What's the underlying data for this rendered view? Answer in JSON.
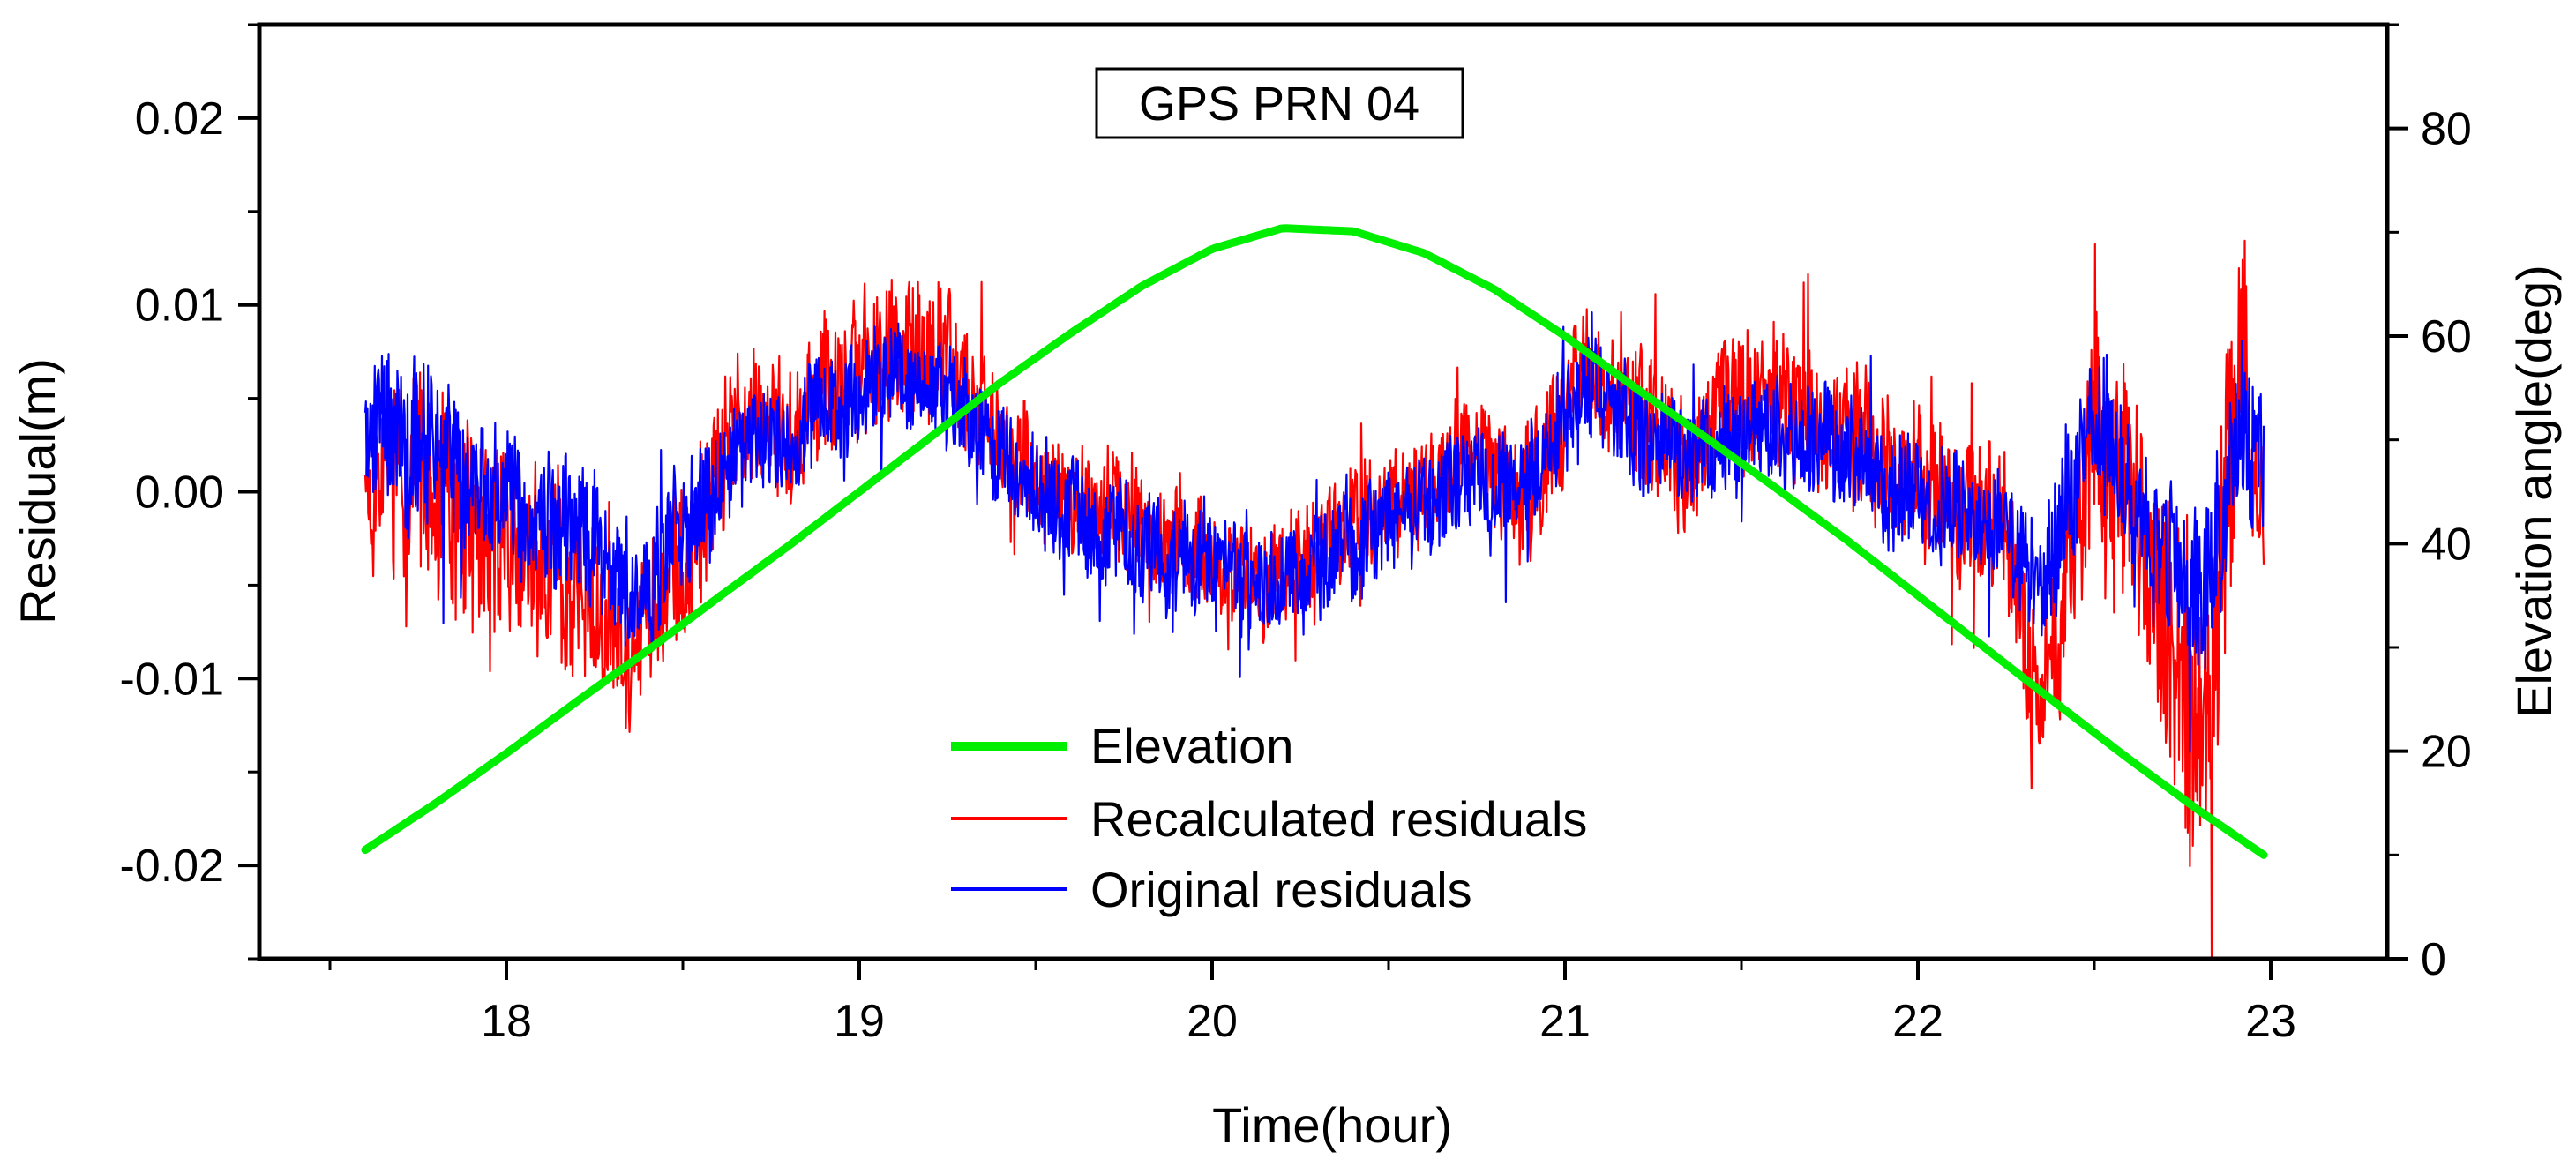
{
  "chart_data": {
    "type": "line",
    "title": "GPS PRN 04",
    "xlabel": "Time(hour)",
    "ylabel": "Residual(m)",
    "y2label": "Elevation angle(deg)",
    "xlim": [
      17.3,
      23.33
    ],
    "ylim": [
      -0.025,
      0.025
    ],
    "y2lim": [
      0,
      90
    ],
    "xticks": [
      18,
      19,
      20,
      21,
      22,
      23
    ],
    "xtick_labels": [
      "18",
      "19",
      "20",
      "21",
      "22",
      "23"
    ],
    "yticks": [
      0.02,
      0.01,
      0.0,
      -0.01,
      -0.02
    ],
    "ytick_labels": [
      "0.02",
      "0.01",
      "0.00",
      "-0.01",
      "-0.02"
    ],
    "y2ticks": [
      0,
      20,
      40,
      60,
      80
    ],
    "y2tick_labels": [
      "0",
      "20",
      "40",
      "60",
      "80"
    ],
    "legend_position": "bottom-center",
    "series": [
      {
        "name": "Elevation",
        "axis": "right",
        "color": "#00ee00",
        "x": [
          17.6,
          17.8,
          18.0,
          18.2,
          18.4,
          18.6,
          18.8,
          19.0,
          19.2,
          19.4,
          19.6,
          19.8,
          20.0,
          20.2,
          20.4,
          20.6,
          20.8,
          21.0,
          21.2,
          21.4,
          21.6,
          21.8,
          22.0,
          22.2,
          22.4,
          22.6,
          22.8,
          22.98
        ],
        "values": [
          10.5,
          15.0,
          19.8,
          24.8,
          29.7,
          34.8,
          39.8,
          45.0,
          50.2,
          55.5,
          60.3,
          64.8,
          68.4,
          70.4,
          70.1,
          68.0,
          64.5,
          60.0,
          55.0,
          50.2,
          45.3,
          40.3,
          35.0,
          29.7,
          24.4,
          19.2,
          14.2,
          10.0
        ]
      },
      {
        "name": "Recalculated residuals",
        "axis": "left",
        "color": "#ff0000",
        "x": [
          17.6,
          17.75,
          17.9,
          18.05,
          18.2,
          18.35,
          18.5,
          18.65,
          18.8,
          18.95,
          19.1,
          19.25,
          19.4,
          19.55,
          19.7,
          19.85,
          20.0,
          20.15,
          20.3,
          20.45,
          20.6,
          20.75,
          20.9,
          21.05,
          21.2,
          21.35,
          21.5,
          21.65,
          21.8,
          21.95,
          22.1,
          22.25,
          22.35,
          22.5,
          22.65,
          22.8,
          22.92,
          22.98
        ],
        "values": [
          0.0,
          0.001,
          -0.002,
          -0.003,
          -0.005,
          -0.008,
          -0.004,
          0.003,
          0.004,
          0.006,
          0.008,
          0.007,
          0.003,
          0.0,
          -0.001,
          -0.002,
          -0.004,
          -0.005,
          -0.003,
          -0.001,
          0.0,
          0.002,
          0.0,
          0.007,
          0.004,
          0.002,
          0.005,
          0.005,
          0.003,
          0.001,
          0.0,
          -0.002,
          -0.012,
          0.004,
          -0.004,
          -0.013,
          0.006,
          -0.003
        ],
        "amplitude": [
          0.004,
          0.006,
          0.006,
          0.005,
          0.005,
          0.004,
          0.005,
          0.004,
          0.004,
          0.004,
          0.004,
          0.004,
          0.003,
          0.003,
          0.003,
          0.003,
          0.003,
          0.003,
          0.003,
          0.003,
          0.003,
          0.003,
          0.004,
          0.003,
          0.004,
          0.004,
          0.004,
          0.004,
          0.004,
          0.004,
          0.004,
          0.005,
          0.004,
          0.006,
          0.007,
          0.008,
          0.008,
          0.005
        ]
      },
      {
        "name": "Original residuals",
        "axis": "left",
        "color": "#0000ff",
        "x": [
          17.6,
          17.75,
          17.9,
          18.05,
          18.2,
          18.35,
          18.5,
          18.65,
          18.8,
          18.95,
          19.1,
          19.25,
          19.4,
          19.55,
          19.7,
          19.85,
          20.0,
          20.15,
          20.3,
          20.45,
          20.6,
          20.75,
          20.9,
          21.05,
          21.2,
          21.35,
          21.5,
          21.65,
          21.8,
          21.95,
          22.1,
          22.25,
          22.35,
          22.5,
          22.65,
          22.8,
          22.92,
          22.98
        ],
        "values": [
          0.003,
          0.004,
          0.0,
          -0.001,
          -0.002,
          -0.006,
          -0.002,
          0.002,
          0.003,
          0.005,
          0.006,
          0.005,
          0.002,
          -0.001,
          -0.002,
          -0.003,
          -0.004,
          -0.005,
          -0.004,
          -0.002,
          -0.001,
          0.001,
          0.0,
          0.006,
          0.003,
          0.002,
          0.003,
          0.003,
          0.002,
          0.0,
          -0.001,
          -0.002,
          -0.005,
          0.004,
          -0.002,
          -0.006,
          0.004,
          0.0
        ],
        "amplitude": [
          0.004,
          0.005,
          0.004,
          0.004,
          0.004,
          0.003,
          0.004,
          0.003,
          0.003,
          0.003,
          0.003,
          0.003,
          0.003,
          0.003,
          0.003,
          0.003,
          0.003,
          0.003,
          0.003,
          0.003,
          0.003,
          0.003,
          0.003,
          0.003,
          0.003,
          0.003,
          0.003,
          0.003,
          0.003,
          0.003,
          0.003,
          0.003,
          0.004,
          0.004,
          0.004,
          0.005,
          0.005,
          0.004
        ]
      }
    ]
  }
}
